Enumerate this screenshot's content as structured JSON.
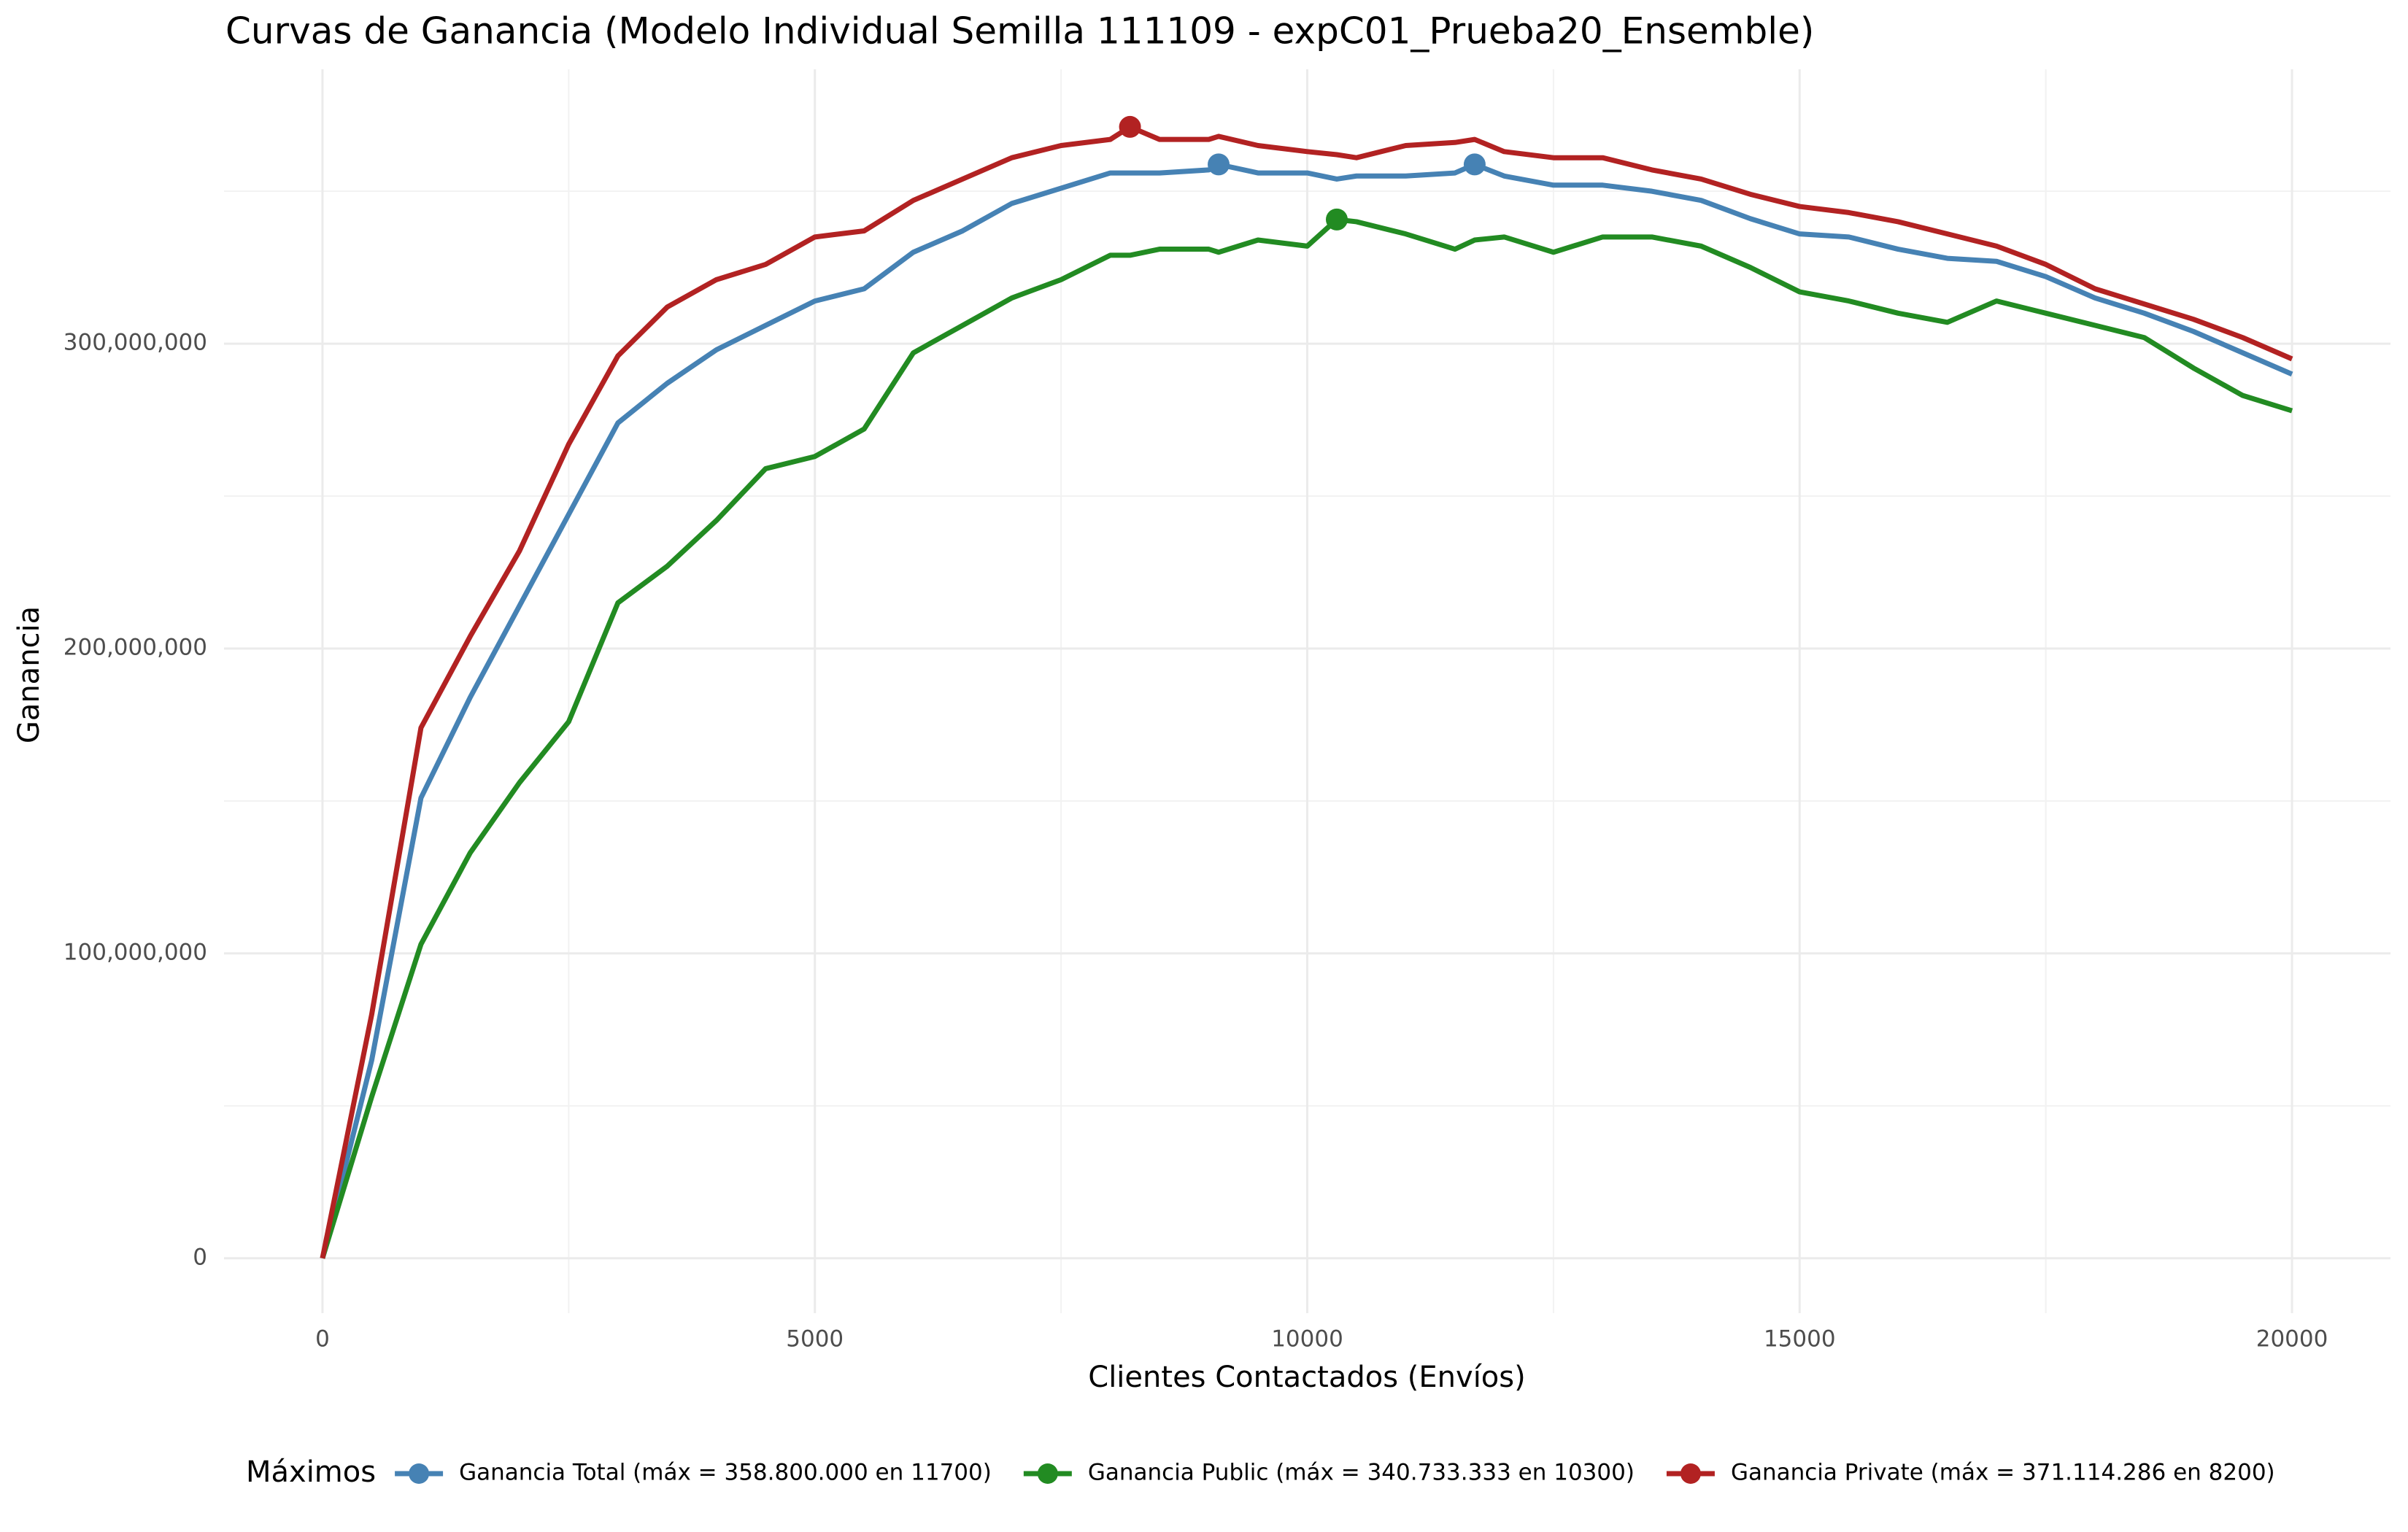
{
  "chart_data": {
    "type": "line",
    "title": "Curvas de Ganancia (Modelo Individual Semilla 111109 - expC01_Prueba20_Ensemble)",
    "x_label": "Clientes Contactados (Envíos)",
    "y_label": "Ganancia",
    "legend_title": "Máximos",
    "legend_position": "bottom",
    "grid": true,
    "x": [
      0,
      500,
      1000,
      1500,
      2000,
      2500,
      3000,
      3500,
      4000,
      4500,
      5000,
      5500,
      6000,
      6500,
      7000,
      7500,
      8000,
      8200,
      8500,
      9000,
      9100,
      9500,
      10000,
      10300,
      10500,
      11000,
      11500,
      11700,
      12000,
      12500,
      13000,
      13500,
      14000,
      14500,
      15000,
      15500,
      16000,
      16500,
      17000,
      17500,
      18000,
      18500,
      19000,
      19500,
      20000
    ],
    "series": [
      {
        "name": "Ganancia Total (máx = 358.800.000 en 11700)",
        "color": "#4682b4",
        "values": [
          0,
          65000000,
          151000000,
          184000000,
          214000000,
          244000000,
          274000000,
          287000000,
          298000000,
          306000000,
          314000000,
          318000000,
          330000000,
          337000000,
          346000000,
          351000000,
          356000000,
          356000000,
          356000000,
          357000000,
          358800000,
          356000000,
          356000000,
          354000000,
          355000000,
          355000000,
          356000000,
          358800000,
          355000000,
          352000000,
          352000000,
          350000000,
          347000000,
          341000000,
          336000000,
          335000000,
          331000000,
          328000000,
          327000000,
          322000000,
          315000000,
          310000000,
          304000000,
          297000000,
          290000000
        ],
        "markers": [
          {
            "x": 9100,
            "value": 358800000
          },
          {
            "x": 11700,
            "value": 358800000
          }
        ]
      },
      {
        "name": "Ganancia Public (máx = 340.733.333 en 10300)",
        "color": "#228b22",
        "values": [
          0,
          53000000,
          103000000,
          133000000,
          156000000,
          176000000,
          215000000,
          227000000,
          242000000,
          259000000,
          263000000,
          272000000,
          297000000,
          306000000,
          315000000,
          321000000,
          329000000,
          329000000,
          331000000,
          331000000,
          330000000,
          334000000,
          332000000,
          340733333,
          340000000,
          336000000,
          331000000,
          334000000,
          335000000,
          330000000,
          335000000,
          335000000,
          332000000,
          325000000,
          317000000,
          314000000,
          310000000,
          307000000,
          314000000,
          310000000,
          306000000,
          302000000,
          292000000,
          283000000,
          278000000
        ],
        "markers": [
          {
            "x": 10300,
            "value": 340733333
          }
        ]
      },
      {
        "name": "Ganancia Private (máx = 371.114.286 en 8200)",
        "color": "#b22222",
        "values": [
          0,
          80000000,
          174000000,
          204000000,
          232000000,
          267000000,
          296000000,
          312000000,
          321000000,
          326000000,
          335000000,
          337000000,
          347000000,
          354000000,
          361000000,
          365000000,
          367000000,
          371114286,
          367000000,
          367000000,
          368000000,
          365000000,
          363000000,
          362000000,
          361000000,
          365000000,
          366000000,
          367000000,
          363000000,
          361000000,
          361000000,
          357000000,
          354000000,
          349000000,
          345000000,
          343000000,
          340000000,
          336000000,
          332000000,
          326000000,
          318000000,
          313000000,
          308000000,
          302000000,
          295000000
        ],
        "markers": [
          {
            "x": 8200,
            "value": 371114286
          }
        ]
      }
    ],
    "xlim": [
      -1000,
      21000
    ],
    "xticks": [
      0,
      5000,
      10000,
      15000,
      20000
    ],
    "ylim": [
      -18000000,
      390000000
    ],
    "yticks": [
      0,
      {
        "value": 100000000,
        "label": "100,000,000"
      },
      {
        "value": 200000000,
        "label": "200,000,000"
      },
      {
        "value": 300000000,
        "label": "300,000,000"
      }
    ]
  }
}
